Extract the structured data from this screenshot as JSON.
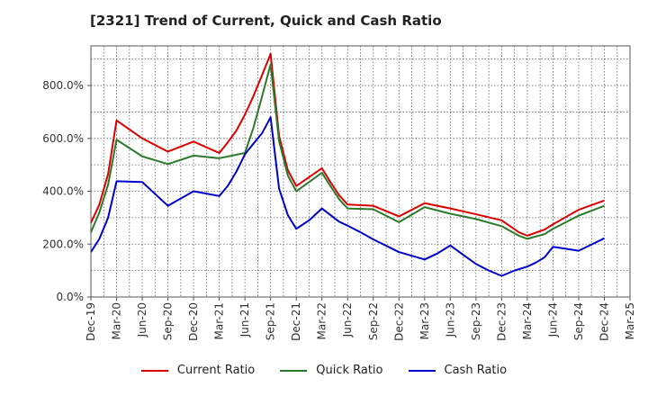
{
  "chart_data": {
    "type": "line",
    "title": "[2321]  Trend of Current, Quick and Cash Ratio",
    "xlabel": "",
    "ylabel": "",
    "ylim": [
      0,
      950
    ],
    "yticks": [
      0,
      200,
      400,
      600,
      800
    ],
    "ytick_labels": [
      "0.0%",
      "200.0%",
      "400.0%",
      "600.0%",
      "800.0%"
    ],
    "xtick_labels": [
      "Dec-19",
      "Mar-20",
      "Jun-20",
      "Sep-20",
      "Dec-20",
      "Mar-21",
      "Jun-21",
      "Sep-21",
      "Dec-21",
      "Mar-22",
      "Jun-22",
      "Sep-22",
      "Dec-22",
      "Mar-23",
      "Jun-23",
      "Sep-23",
      "Dec-23",
      "Mar-24",
      "Jun-24",
      "Sep-24",
      "Dec-24",
      "Mar-25"
    ],
    "grid": true,
    "series": [
      {
        "name": "Current Ratio",
        "color": "#dd0000",
        "points": [
          [
            0,
            280
          ],
          [
            0.33,
            350
          ],
          [
            0.67,
            465
          ],
          [
            1,
            668
          ],
          [
            2,
            600
          ],
          [
            3,
            550
          ],
          [
            4,
            588
          ],
          [
            5,
            545
          ],
          [
            5.33,
            585
          ],
          [
            5.67,
            630
          ],
          [
            6,
            690
          ],
          [
            6.33,
            760
          ],
          [
            6.67,
            840
          ],
          [
            7,
            920
          ],
          [
            7.33,
            610
          ],
          [
            7.67,
            480
          ],
          [
            8,
            420
          ],
          [
            9,
            487
          ],
          [
            9.33,
            435
          ],
          [
            9.67,
            385
          ],
          [
            10,
            350
          ],
          [
            11,
            345
          ],
          [
            12,
            305
          ],
          [
            13,
            355
          ],
          [
            14,
            335
          ],
          [
            15,
            313
          ],
          [
            16,
            290
          ],
          [
            16.67,
            245
          ],
          [
            17,
            232
          ],
          [
            17.67,
            255
          ],
          [
            18,
            275
          ],
          [
            19,
            330
          ],
          [
            20,
            365
          ]
        ]
      },
      {
        "name": "Quick Ratio",
        "color": "#2b7a2b",
        "points": [
          [
            0,
            245
          ],
          [
            0.33,
            320
          ],
          [
            0.67,
            425
          ],
          [
            1,
            595
          ],
          [
            2,
            532
          ],
          [
            3,
            503
          ],
          [
            4,
            535
          ],
          [
            5,
            525
          ],
          [
            6,
            545
          ],
          [
            6.33,
            640
          ],
          [
            6.67,
            760
          ],
          [
            7,
            880
          ],
          [
            7.33,
            590
          ],
          [
            7.67,
            460
          ],
          [
            8,
            400
          ],
          [
            9,
            470
          ],
          [
            9.33,
            420
          ],
          [
            9.67,
            370
          ],
          [
            10,
            335
          ],
          [
            11,
            332
          ],
          [
            12,
            283
          ],
          [
            13,
            340
          ],
          [
            14,
            315
          ],
          [
            15,
            295
          ],
          [
            16,
            268
          ],
          [
            16.67,
            232
          ],
          [
            17,
            220
          ],
          [
            17.67,
            238
          ],
          [
            18,
            258
          ],
          [
            19,
            308
          ],
          [
            20,
            345
          ]
        ]
      },
      {
        "name": "Cash Ratio",
        "color": "#0000cc",
        "points": [
          [
            0,
            170
          ],
          [
            0.33,
            220
          ],
          [
            0.67,
            300
          ],
          [
            1,
            438
          ],
          [
            2,
            435
          ],
          [
            2.5,
            390
          ],
          [
            3,
            345
          ],
          [
            4,
            400
          ],
          [
            5,
            382
          ],
          [
            5.33,
            420
          ],
          [
            5.67,
            475
          ],
          [
            6,
            540
          ],
          [
            6.33,
            580
          ],
          [
            6.67,
            620
          ],
          [
            7,
            680
          ],
          [
            7.33,
            410
          ],
          [
            7.67,
            310
          ],
          [
            8,
            258
          ],
          [
            8.5,
            290
          ],
          [
            9,
            335
          ],
          [
            9.33,
            310
          ],
          [
            9.67,
            285
          ],
          [
            10,
            270
          ],
          [
            10.5,
            245
          ],
          [
            11,
            218
          ],
          [
            12,
            170
          ],
          [
            13,
            142
          ],
          [
            13.5,
            165
          ],
          [
            14,
            195
          ],
          [
            14.5,
            160
          ],
          [
            15,
            125
          ],
          [
            15.5,
            100
          ],
          [
            16,
            80
          ],
          [
            16.5,
            100
          ],
          [
            17,
            115
          ],
          [
            17.33,
            130
          ],
          [
            17.67,
            150
          ],
          [
            18,
            190
          ],
          [
            19,
            175
          ],
          [
            20,
            222
          ]
        ]
      }
    ]
  },
  "legend": {
    "items": [
      {
        "label": "Current Ratio",
        "color": "#dd0000"
      },
      {
        "label": "Quick Ratio",
        "color": "#2b7a2b"
      },
      {
        "label": "Cash Ratio",
        "color": "#0000cc"
      }
    ]
  }
}
